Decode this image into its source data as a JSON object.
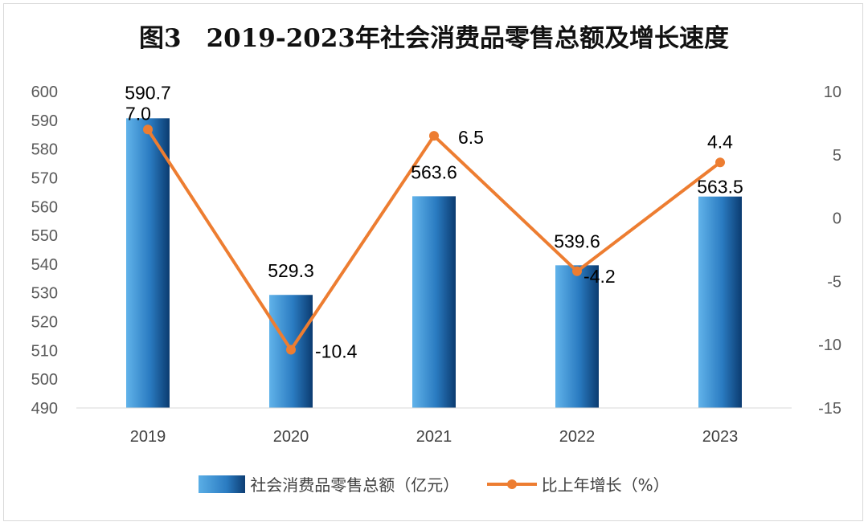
{
  "title": "图3　2019-2023年社会消费品零售总额及增长速度",
  "chart_data": {
    "type": "bar",
    "categories": [
      "2019",
      "2020",
      "2021",
      "2022",
      "2023"
    ],
    "series": [
      {
        "name": "社会消费品零售总额（亿元）",
        "type": "bar",
        "axis": "left",
        "values": [
          590.7,
          529.3,
          563.6,
          539.6,
          563.5
        ],
        "labels": [
          "590.7",
          "529.3",
          "563.6",
          "539.6",
          "563.5"
        ],
        "color": "#2e7fc4"
      },
      {
        "name": "比上年增长（%）",
        "type": "line",
        "axis": "right",
        "values": [
          7.0,
          -10.4,
          6.5,
          -4.2,
          4.4
        ],
        "labels": [
          "7.0",
          "-10.4",
          "6.5",
          "-4.2",
          "4.4"
        ],
        "color": "#ed7d31"
      }
    ],
    "y_left": {
      "min": 490,
      "max": 600,
      "ticks": [
        "490",
        "500",
        "510",
        "520",
        "530",
        "540",
        "550",
        "560",
        "570",
        "580",
        "590",
        "600"
      ]
    },
    "y_right": {
      "min": -15,
      "max": 10,
      "ticks": [
        "-15",
        "-10",
        "-5",
        "0",
        "5",
        "10"
      ]
    },
    "grid": false,
    "legend_position": "bottom"
  }
}
